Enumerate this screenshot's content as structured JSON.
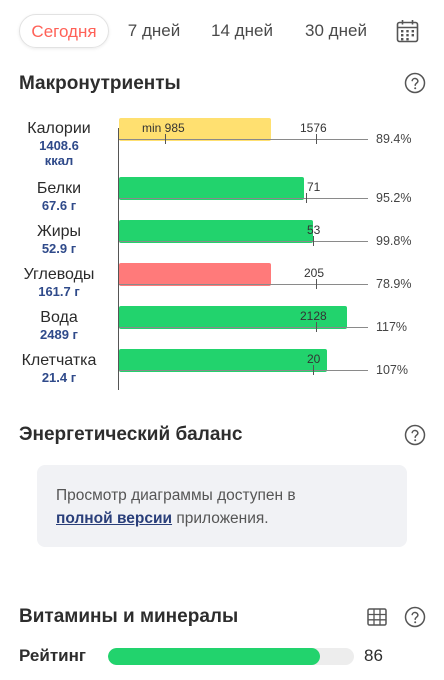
{
  "tabs": [
    {
      "label": "Сегодня",
      "active": true
    },
    {
      "label": "7 дней",
      "active": false
    },
    {
      "label": "14 дней",
      "active": false
    },
    {
      "label": "30 дней",
      "active": false
    }
  ],
  "icons": {
    "calendar": "calendar-icon",
    "help": "question-circle-icon",
    "table": "table-grid-icon"
  },
  "colors": {
    "accent": "#ff6157",
    "ok": "#22d36d",
    "low": "#ffe070",
    "high": "#ff7a7a",
    "value_text": "#2f4a8a"
  },
  "macros": {
    "title": "Макронутриенты",
    "rows": [
      {
        "name": "Калории",
        "value": "1408.6",
        "unit": "ккал",
        "min_label": "min 985",
        "target_label": "1576",
        "percent": "89.4%",
        "status": "low"
      },
      {
        "name": "Белки",
        "value": "67.6 г",
        "target_label": "71",
        "percent": "95.2%",
        "status": "ok"
      },
      {
        "name": "Жиры",
        "value": "52.9 г",
        "target_label": "53",
        "percent": "99.8%",
        "status": "ok"
      },
      {
        "name": "Углеводы",
        "value": "161.7 г",
        "target_label": "205",
        "percent": "78.9%",
        "status": "high"
      },
      {
        "name": "Вода",
        "value": "2489 г",
        "target_label": "2128",
        "percent": "117%",
        "status": "ok"
      },
      {
        "name": "Клетчатка",
        "value": "21.4 г",
        "target_label": "20",
        "percent": "107%",
        "status": "ok"
      }
    ]
  },
  "energy": {
    "title": "Энергетический баланс",
    "notice_before": "Просмотр диаграммы доступен в",
    "notice_link": "полной версии",
    "notice_after": " приложения."
  },
  "vitamins": {
    "title": "Витамины и минералы",
    "rating_label": "Рейтинг",
    "rating_value": "86",
    "rating_fraction": 0.86
  }
}
